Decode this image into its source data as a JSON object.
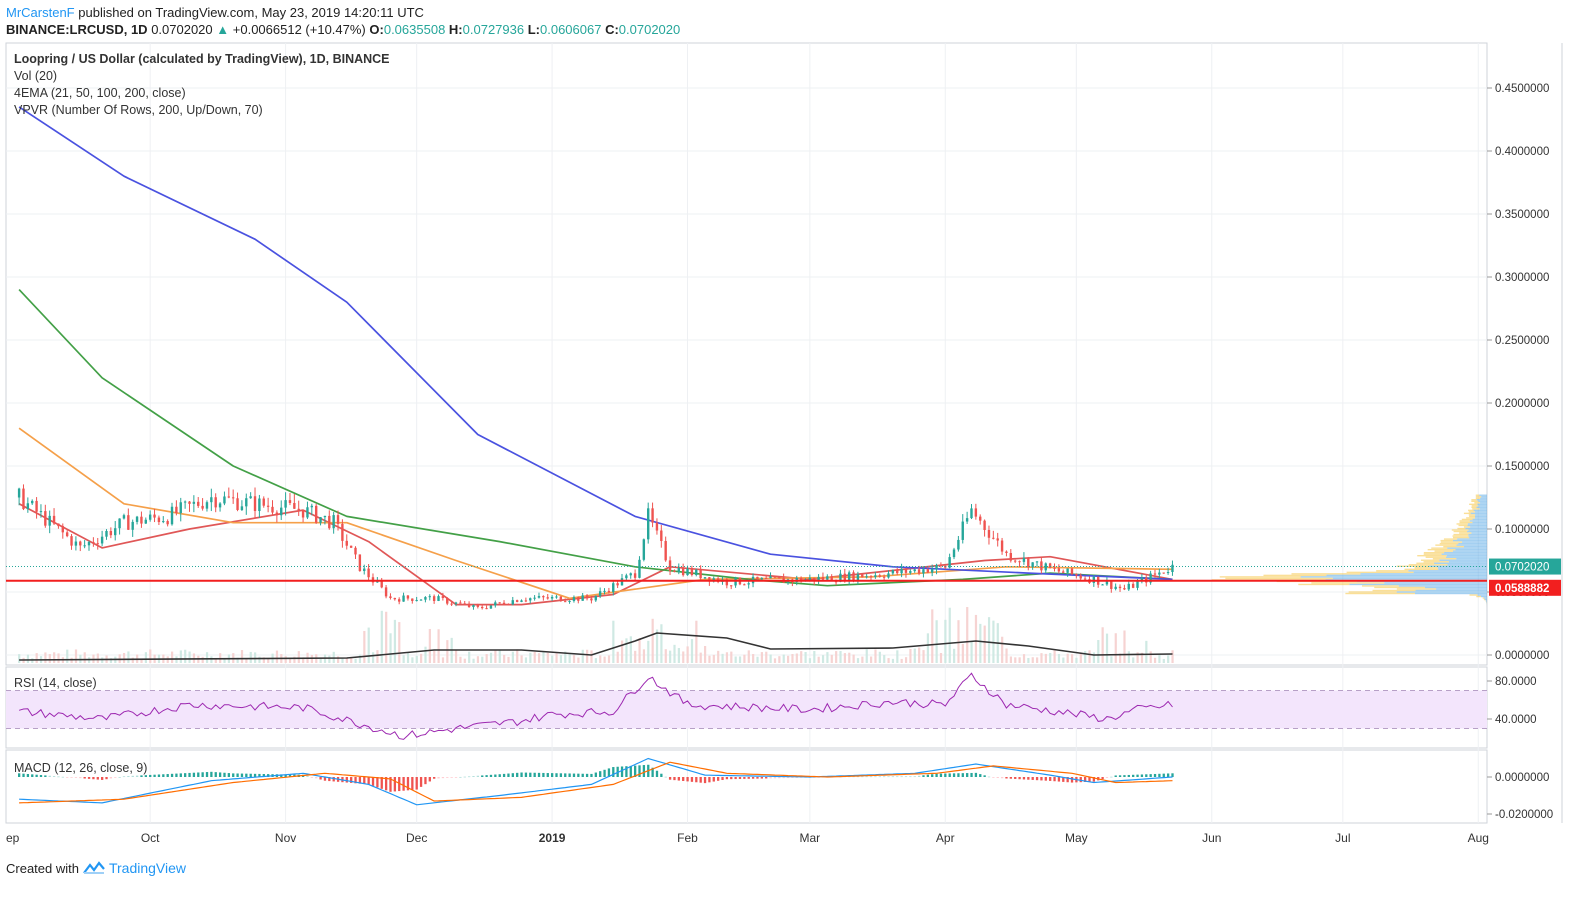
{
  "header": {
    "author": "MrCarstenF",
    "published": "published on TradingView.com, May 23, 2019 14:20:11 UTC",
    "symbol": "BINANCE:LRCUSD, 1D",
    "last": "0.0702020",
    "change": "+0.0066512 (+10.47%)",
    "o_label": "O:",
    "o": "0.0635508",
    "h_label": "H:",
    "h": "0.0727936",
    "l_label": "L:",
    "l": "0.0606067",
    "c_label": "C:",
    "c": "0.0702020"
  },
  "legends": {
    "title": "Loopring / US Dollar (calculated by TradingView), 1D, BINANCE",
    "vol": "Vol (20)",
    "ema": "4EMA (21, 50, 100, 200, close)",
    "vpvr": "VPVR (Number Of Rows, 200, Up/Down, 70)",
    "rsi": "RSI (14, close)",
    "macd": "MACD (12, 26, close, 9)"
  },
  "footer": {
    "created": "Created with",
    "brand": "TradingView"
  },
  "colors": {
    "up": "#26a69a",
    "down": "#ef5350",
    "ema21": "#e05757",
    "ema50": "#f5a04a",
    "ema100": "#43a047",
    "ema200": "#4a52e0",
    "hline": "#f21f1f",
    "rsi": "#9c27b0",
    "rsi_band": "#f3e5fc",
    "macd": "#2196f3",
    "signal": "#ff6d00",
    "vpvr_up": "#5aa9e6",
    "vpvr_down": "#f5c542"
  },
  "chart_data": {
    "type": "candlestick",
    "x_ticks": [
      "ep",
      "Oct",
      "Nov",
      "Dec",
      "2019",
      "Feb",
      "Mar",
      "Apr",
      "May",
      "Jun",
      "Jul",
      "Aug"
    ],
    "price_axis": [
      "0.4500000",
      "0.4000000",
      "0.3500000",
      "0.3000000",
      "0.2500000",
      "0.2000000",
      "0.1500000",
      "0.1000000",
      "0.0500000",
      "0.0000000"
    ],
    "ylim": [
      0,
      0.48
    ],
    "last_price_label": "0.0702020",
    "hline_label": "0.0588882",
    "hline_value": 0.0588882,
    "price_path": [
      [
        "2018-09-01",
        0.125
      ],
      [
        "2018-09-15",
        0.085
      ],
      [
        "2018-09-25",
        0.105
      ],
      [
        "2018-10-05",
        0.11
      ],
      [
        "2018-10-15",
        0.125
      ],
      [
        "2018-10-25",
        0.12
      ],
      [
        "2018-11-05",
        0.115
      ],
      [
        "2018-11-12",
        0.105
      ],
      [
        "2018-11-18",
        0.07
      ],
      [
        "2018-11-25",
        0.045
      ],
      [
        "2018-12-05",
        0.045
      ],
      [
        "2018-12-15",
        0.037
      ],
      [
        "2018-12-25",
        0.045
      ],
      [
        "2019-01-10",
        0.045
      ],
      [
        "2019-01-20",
        0.065
      ],
      [
        "2019-01-23",
        0.11
      ],
      [
        "2019-01-28",
        0.07
      ],
      [
        "2019-02-10",
        0.058
      ],
      [
        "2019-03-01",
        0.06
      ],
      [
        "2019-03-20",
        0.065
      ],
      [
        "2019-04-01",
        0.07
      ],
      [
        "2019-04-07",
        0.115
      ],
      [
        "2019-04-15",
        0.08
      ],
      [
        "2019-04-25",
        0.068
      ],
      [
        "2019-05-05",
        0.06
      ],
      [
        "2019-05-12",
        0.052
      ],
      [
        "2019-05-23",
        0.0702
      ]
    ],
    "ema_series": [
      {
        "name": "EMA 21",
        "values": [
          [
            "2018-09-01",
            0.12
          ],
          [
            "2018-09-20",
            0.085
          ],
          [
            "2018-10-10",
            0.1
          ],
          [
            "2018-11-05",
            0.115
          ],
          [
            "2018-11-20",
            0.09
          ],
          [
            "2018-12-10",
            0.04
          ],
          [
            "2018-12-25",
            0.04
          ],
          [
            "2019-01-15",
            0.048
          ],
          [
            "2019-01-28",
            0.07
          ],
          [
            "2019-03-01",
            0.06
          ],
          [
            "2019-04-10",
            0.075
          ],
          [
            "2019-04-25",
            0.078
          ],
          [
            "2019-05-23",
            0.06
          ]
        ]
      },
      {
        "name": "EMA 50",
        "values": [
          [
            "2018-09-01",
            0.18
          ],
          [
            "2018-09-25",
            0.12
          ],
          [
            "2018-10-20",
            0.105
          ],
          [
            "2018-11-15",
            0.105
          ],
          [
            "2018-12-10",
            0.075
          ],
          [
            "2019-01-05",
            0.045
          ],
          [
            "2019-02-05",
            0.06
          ],
          [
            "2019-03-15",
            0.062
          ],
          [
            "2019-04-15",
            0.07
          ],
          [
            "2019-05-23",
            0.068
          ]
        ]
      },
      {
        "name": "EMA 100",
        "values": [
          [
            "2018-09-01",
            0.29
          ],
          [
            "2018-09-20",
            0.22
          ],
          [
            "2018-10-20",
            0.15
          ],
          [
            "2018-11-15",
            0.11
          ],
          [
            "2018-12-20",
            0.09
          ],
          [
            "2019-01-20",
            0.07
          ],
          [
            "2019-02-15",
            0.06
          ],
          [
            "2019-03-05",
            0.055
          ],
          [
            "2019-04-05",
            0.06
          ],
          [
            "2019-04-25",
            0.065
          ],
          [
            "2019-05-23",
            0.06
          ]
        ]
      },
      {
        "name": "EMA 200",
        "values": [
          [
            "2018-09-01",
            0.435
          ],
          [
            "2018-09-25",
            0.38
          ],
          [
            "2018-10-25",
            0.33
          ],
          [
            "2018-11-15",
            0.28
          ],
          [
            "2018-12-15",
            0.175
          ],
          [
            "2019-01-20",
            0.11
          ],
          [
            "2019-02-20",
            0.08
          ],
          [
            "2019-03-20",
            0.07
          ],
          [
            "2019-04-20",
            0.065
          ],
          [
            "2019-05-23",
            0.06
          ]
        ]
      }
    ],
    "rsi_axis": [
      "80.0000",
      "40.0000"
    ],
    "rsi_range": [
      30,
      70
    ],
    "macd_axis": [
      "0.0000000",
      "-0.0200000"
    ]
  }
}
